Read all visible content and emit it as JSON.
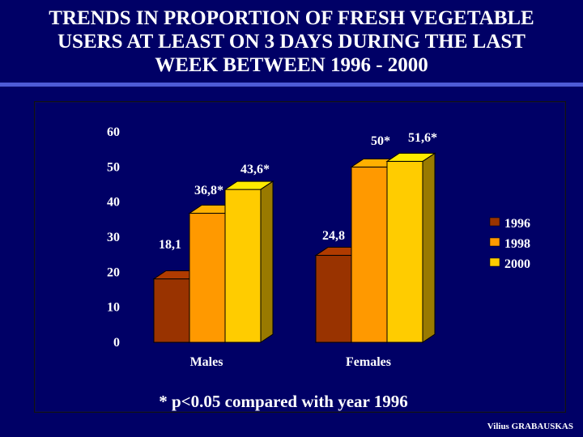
{
  "slide": {
    "title_lines": [
      "TRENDS IN PROPORTION OF FRESH VEGETABLE",
      "USERS AT LEAST ON 3 DAYS DURING THE LAST",
      "WEEK BETWEEN 1996 - 2000"
    ],
    "note": "* p<0.05 compared with year 1996",
    "author": "Vilius GRABAUSKAS"
  },
  "colors": {
    "background": "#000066",
    "rule": "#4e5bd6",
    "series_1996": "#993300",
    "series_1998": "#ff9900",
    "series_2000": "#ffcc00"
  },
  "chart_data": {
    "type": "bar",
    "categories": [
      "Males",
      "Females"
    ],
    "series": [
      {
        "name": "1996",
        "values": [
          18.1,
          24.8
        ],
        "labels": [
          "18,1",
          "24,8"
        ]
      },
      {
        "name": "1998",
        "values": [
          36.8,
          50
        ],
        "labels": [
          "36,8*",
          "50*"
        ]
      },
      {
        "name": "2000",
        "values": [
          43.6,
          51.6
        ],
        "labels": [
          "43,6*",
          "51,6*"
        ]
      }
    ],
    "yticks": [
      "0",
      "10",
      "20",
      "30",
      "40",
      "50",
      "60"
    ],
    "ylim": [
      0,
      60
    ],
    "legend": "right",
    "grid": false,
    "style": "3d"
  }
}
